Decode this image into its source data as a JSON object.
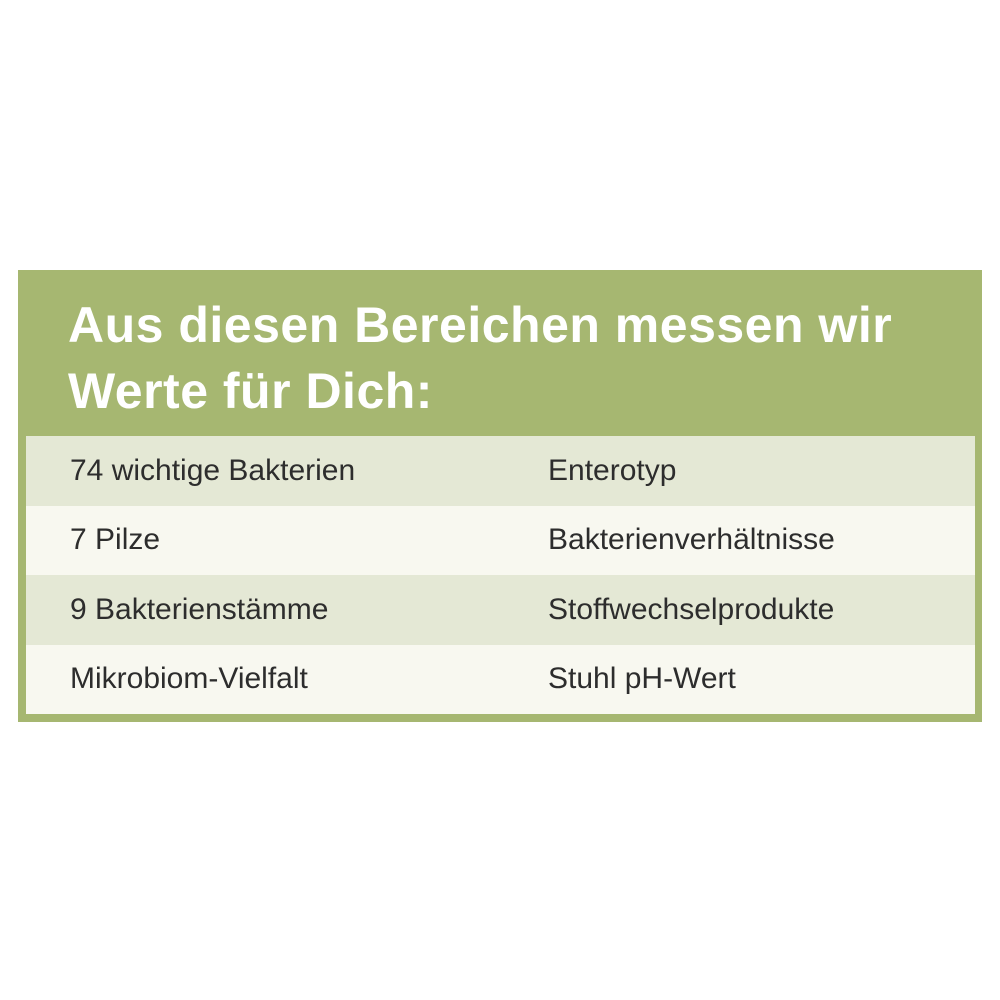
{
  "table": {
    "title_line1": "Aus diesen Bereichen messen wir",
    "title_line2": "Werte für Dich:",
    "rows": [
      {
        "left": "74 wichtige Bakterien",
        "right": "Enterotyp"
      },
      {
        "left": "7 Pilze",
        "right": "Bakterienverhältnisse"
      },
      {
        "left": "9 Bakterienstämme",
        "right": "Stoffwechselprodukte"
      },
      {
        "left": "Mikrobiom-Vielfalt",
        "right": "Stuhl pH-Wert"
      }
    ],
    "colors": {
      "green": "#a6b771",
      "row_alt": "#e4e8d5",
      "row_base": "#f8f8f0",
      "title_color": "#ffffff",
      "text_color": "#2d2d2d"
    }
  }
}
